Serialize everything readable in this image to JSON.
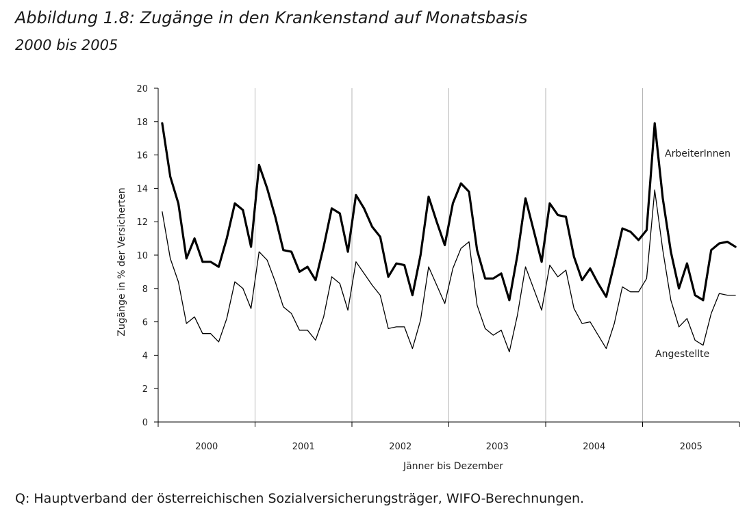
{
  "figure": {
    "title": "Abbildung 1.8: Zugänge in den Krankenstand auf Monatsbasis",
    "subtitle": "2000 bis 2005",
    "source": "Q: Hauptverband der österreichischen Sozialversicherungsträger, WIFO-Berechnungen."
  },
  "chart_data": {
    "type": "line",
    "title": "Abbildung 1.8: Zugänge in den Krankenstand auf Monatsbasis",
    "subtitle": "2000 bis 2005",
    "xlabel": "Jänner bis Dezember",
    "ylabel": "Zugänge in % der Versicherten",
    "ylim": [
      0,
      20
    ],
    "yticks": [
      0,
      2,
      4,
      6,
      8,
      10,
      12,
      14,
      16,
      18,
      20
    ],
    "years": [
      "2000",
      "2001",
      "2002",
      "2003",
      "2004",
      "2005"
    ],
    "months_per_year": 12,
    "grid": "vertical lines at year boundaries",
    "series": [
      {
        "name": "ArbeiterInnen",
        "style": "bold",
        "color": "#000000",
        "values": [
          17.9,
          14.7,
          13.1,
          9.8,
          11.0,
          9.6,
          9.6,
          9.3,
          11.0,
          13.1,
          12.7,
          10.5,
          15.4,
          14.0,
          12.3,
          10.3,
          10.2,
          9.0,
          9.3,
          8.5,
          10.5,
          12.8,
          12.5,
          10.2,
          13.6,
          12.8,
          11.7,
          11.1,
          8.7,
          9.5,
          9.4,
          7.6,
          10.0,
          13.5,
          12.0,
          10.6,
          13.1,
          14.3,
          13.8,
          10.3,
          8.6,
          8.6,
          8.9,
          7.3,
          10.0,
          13.4,
          11.5,
          9.6,
          13.1,
          12.4,
          12.3,
          9.9,
          8.5,
          9.2,
          8.3,
          7.5,
          9.5,
          11.6,
          11.4,
          10.9,
          11.5,
          17.9,
          13.4,
          10.2,
          8.0,
          9.5,
          7.6,
          7.3,
          10.3,
          10.7,
          10.8,
          10.5
        ]
      },
      {
        "name": "Angestellte",
        "style": "thin",
        "color": "#000000",
        "values": [
          12.6,
          9.8,
          8.4,
          5.9,
          6.3,
          5.3,
          5.3,
          4.8,
          6.2,
          8.4,
          8.0,
          6.8,
          10.2,
          9.7,
          8.4,
          6.9,
          6.5,
          5.5,
          5.5,
          4.9,
          6.3,
          8.7,
          8.3,
          6.7,
          9.6,
          8.9,
          8.2,
          7.6,
          5.6,
          5.7,
          5.7,
          4.4,
          6.1,
          9.3,
          8.2,
          7.1,
          9.2,
          10.4,
          10.8,
          7.0,
          5.6,
          5.2,
          5.5,
          4.2,
          6.4,
          9.3,
          8.0,
          6.7,
          9.4,
          8.7,
          9.1,
          6.8,
          5.9,
          6.0,
          5.2,
          4.4,
          5.9,
          8.1,
          7.8,
          7.8,
          8.6,
          13.9,
          10.3,
          7.3,
          5.7,
          6.2,
          4.9,
          4.6,
          6.5,
          7.7,
          7.6,
          7.6
        ]
      }
    ]
  }
}
